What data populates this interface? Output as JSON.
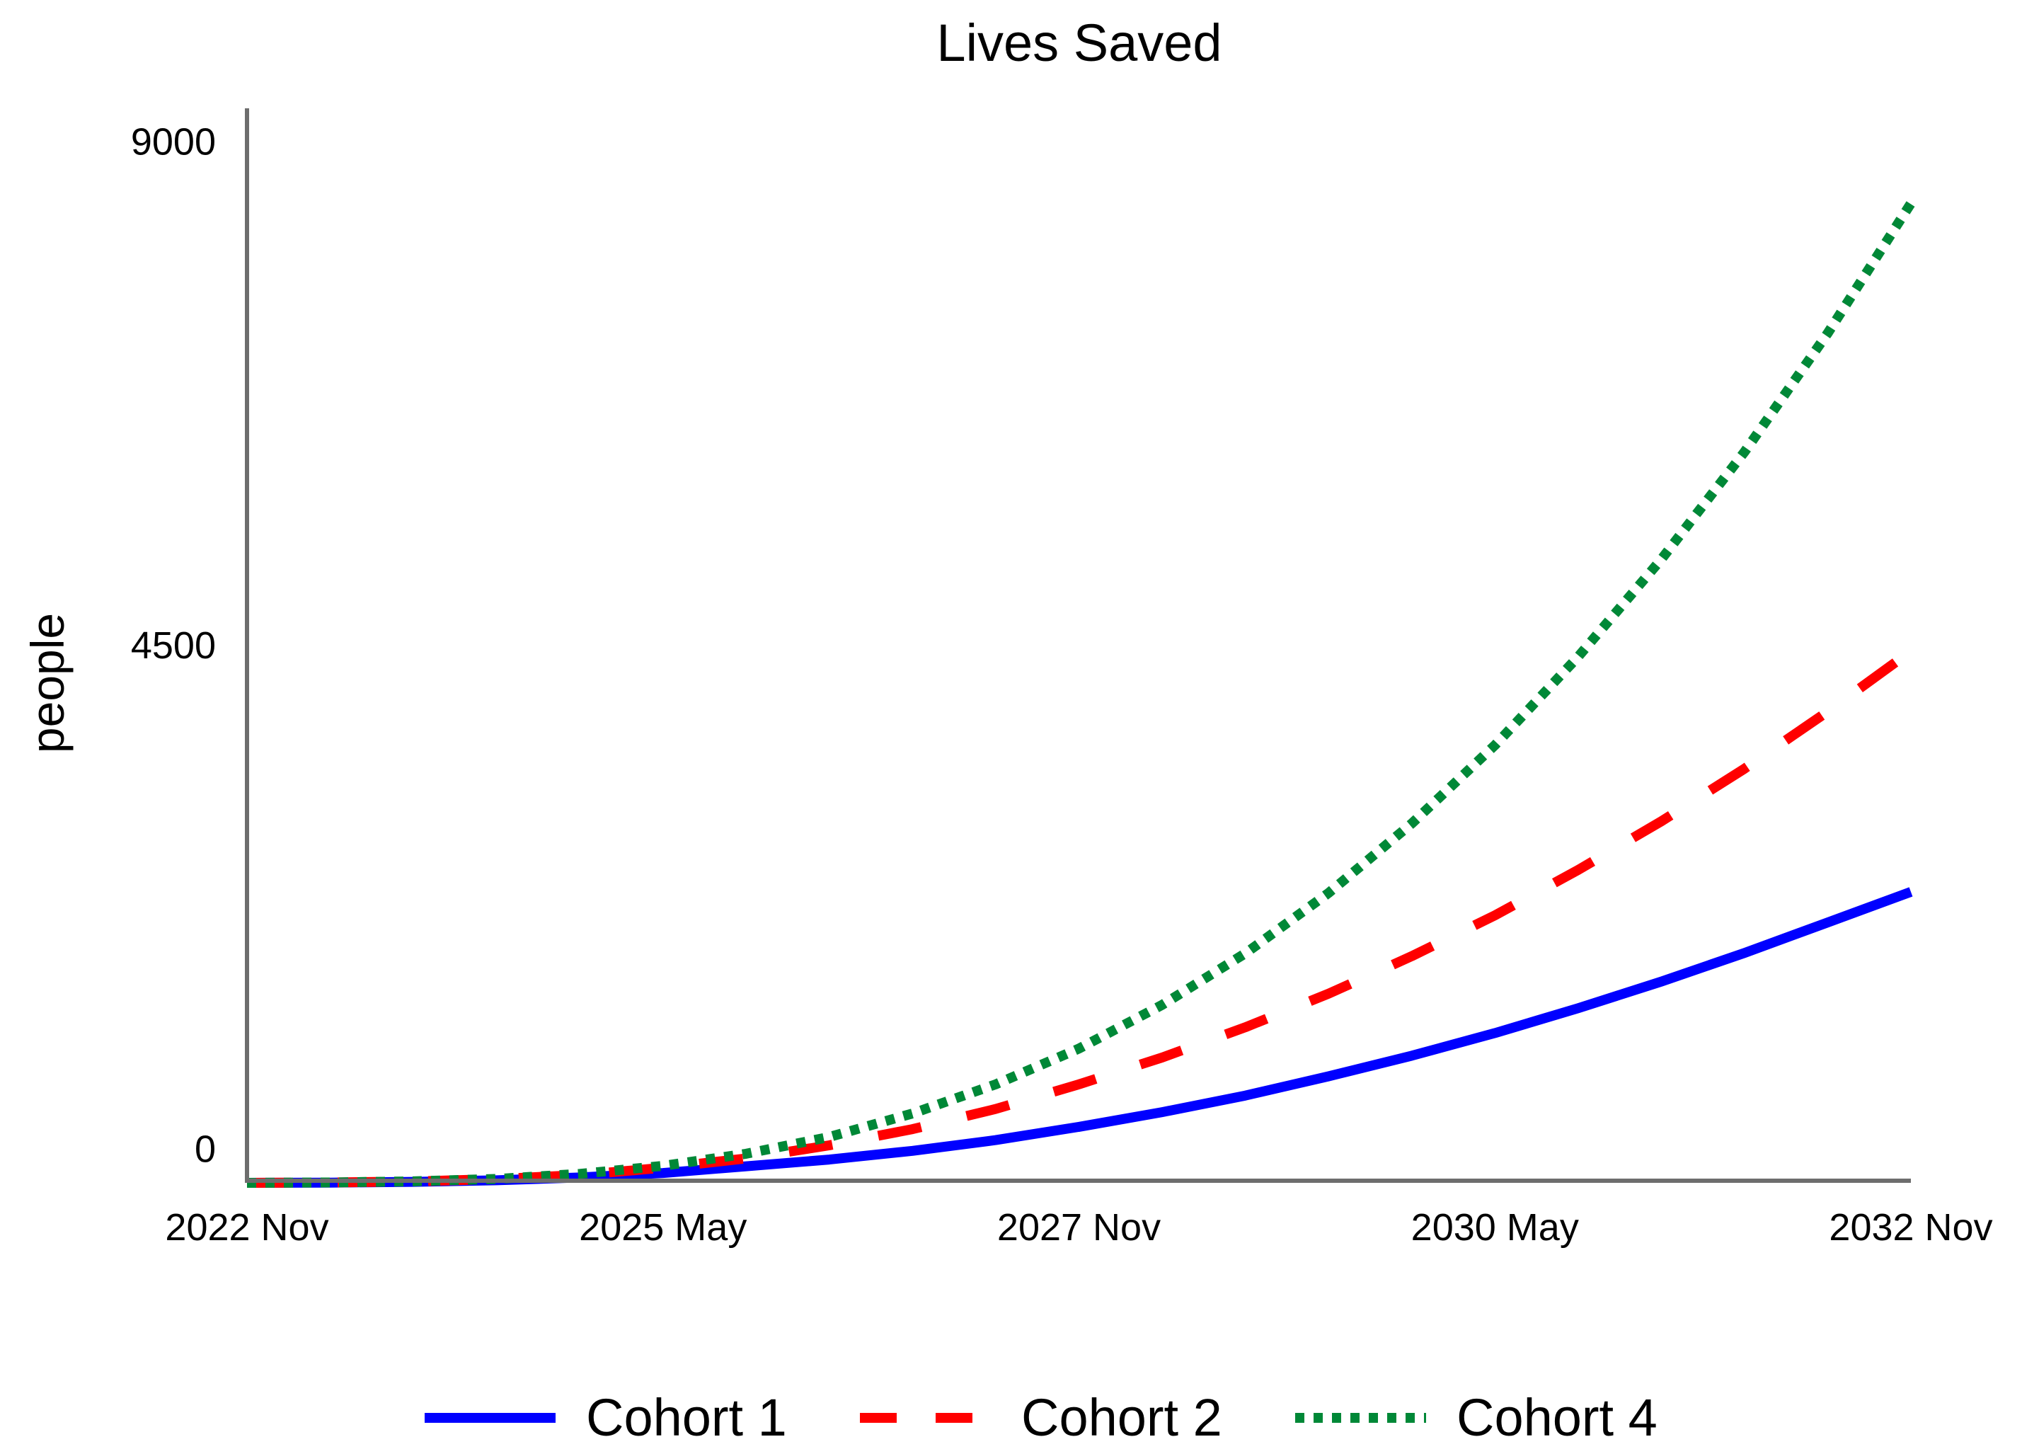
{
  "chart_data": {
    "type": "line",
    "title": "Lives Saved",
    "xlabel": "",
    "ylabel": "people",
    "x_ticks": [
      "2022 Nov",
      "2025 May",
      "2027 Nov",
      "2030 May",
      "2032 Nov"
    ],
    "y_ticks": [
      "0",
      "4500",
      "9000"
    ],
    "xlim": [
      0,
      10
    ],
    "ylim": [
      -300,
      9300
    ],
    "x": [
      0,
      0.5,
      1,
      1.5,
      2,
      2.5,
      3,
      3.5,
      4,
      4.5,
      5,
      5.5,
      6,
      6.5,
      7,
      7.5,
      8,
      8.5,
      9,
      9.5,
      10
    ],
    "series": [
      {
        "name": "Cohort 1",
        "color": "#0000ff",
        "dash": "solid",
        "values": [
          -300,
          -298,
          -291,
          -277,
          -252,
          -212,
          -152,
          -92,
          -14,
          82,
          200,
          332,
          480,
          652,
          836,
          1038,
          1260,
          1498,
          1754,
          2026,
          2300
        ]
      },
      {
        "name": "Cohort 2",
        "color": "#ff0000",
        "dash": "dashed",
        "values": [
          -300,
          -297,
          -288,
          -266,
          -230,
          -165,
          -82,
          35,
          180,
          360,
          580,
          820,
          1090,
          1390,
          1725,
          2090,
          2495,
          2930,
          3400,
          3910,
          4450
        ]
      },
      {
        "name": "Cohort 4",
        "color": "#008837",
        "dash": "dotted",
        "values": [
          -300,
          -297,
          -287,
          -265,
          -220,
          -148,
          -40,
          110,
          320,
          580,
          900,
          1290,
          1750,
          2290,
          2910,
          3610,
          4400,
          5270,
          6230,
          7290,
          8450
        ]
      }
    ],
    "legend": {
      "position": "bottom"
    }
  }
}
